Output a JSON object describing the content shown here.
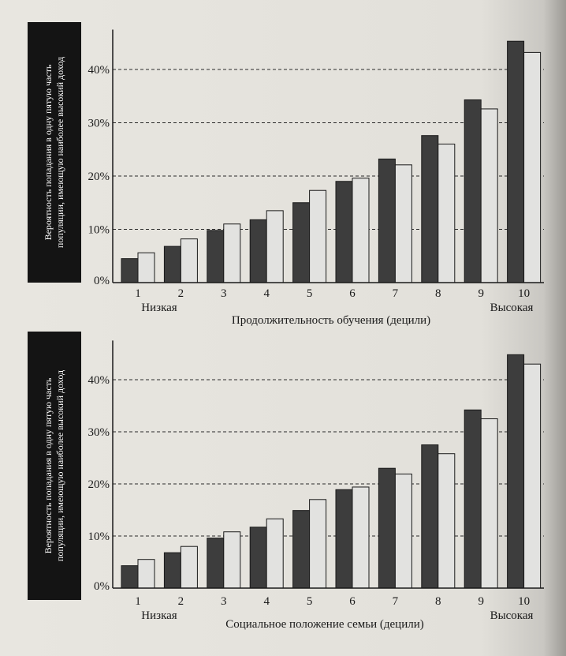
{
  "chart_data": [
    {
      "type": "bar",
      "ylabel": [
        "Вероятность попадания в одну пятую часть",
        "популяции, имеющую наиболее высокий доход"
      ],
      "xlabel": "Продолжительность обучения (децили)",
      "low_label": "Низкая",
      "high_label": "Высокая",
      "categories": [
        "1",
        "2",
        "3",
        "4",
        "5",
        "6",
        "7",
        "8",
        "9",
        "10"
      ],
      "yticks": [
        "0%",
        "10%",
        "20%",
        "30%",
        "40%"
      ],
      "ylim": [
        0,
        46
      ],
      "grid": "dashed horizontal",
      "series": [
        {
          "color": "#3d3d3d",
          "values": [
            4.5,
            6.8,
            9.8,
            11.8,
            15.0,
            19.0,
            23.2,
            27.6,
            34.3,
            45.3
          ]
        },
        {
          "color": "#e2e2e0",
          "values": [
            5.6,
            8.2,
            11.0,
            13.5,
            17.3,
            19.6,
            22.1,
            26.0,
            32.6,
            43.2
          ]
        }
      ]
    },
    {
      "type": "bar",
      "ylabel": [
        "Вероятность попадания в одну пятую часть",
        "популяции, имеющую наиболее высокий доход"
      ],
      "xlabel": "Социальное положение семьи (децили)",
      "low_label": "Низкая",
      "high_label": "Высокая",
      "categories": [
        "1",
        "2",
        "3",
        "4",
        "5",
        "6",
        "7",
        "8",
        "9",
        "10"
      ],
      "yticks": [
        "0%",
        "10%",
        "20%",
        "30%",
        "40%"
      ],
      "ylim": [
        0,
        46
      ],
      "grid": "dashed horizontal",
      "series": [
        {
          "color": "#3d3d3d",
          "values": [
            4.3,
            6.8,
            9.6,
            11.7,
            14.9,
            18.9,
            23.0,
            27.5,
            34.2,
            44.8
          ]
        },
        {
          "color": "#e2e2e0",
          "values": [
            5.5,
            8.0,
            10.8,
            13.3,
            17.0,
            19.4,
            21.9,
            25.8,
            32.5,
            43.0
          ]
        }
      ]
    }
  ]
}
